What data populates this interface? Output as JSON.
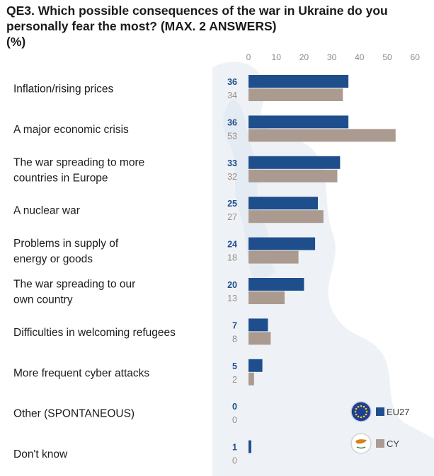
{
  "title": {
    "line1": "QE3. Which possible consequences of the war in Ukraine do you",
    "line2": "personally fear the most? (MAX. 2 ANSWERS)",
    "line3": "(%)"
  },
  "colors": {
    "eu27": "#1f4e8c",
    "cy": "#ab9a8f",
    "eu27_label": "#1f4e8c",
    "cy_label": "#9b8d83",
    "axis_text": "#8a8a8a",
    "map_bg": "#eef2f7"
  },
  "chart_data": {
    "type": "bar",
    "orientation": "horizontal",
    "xlim": [
      0,
      60
    ],
    "xticks": [
      "0",
      "10",
      "20",
      "30",
      "40",
      "50",
      "60"
    ],
    "categories": [
      [
        "Inflation/rising prices"
      ],
      [
        "A major economic crisis"
      ],
      [
        "The war spreading to more",
        "countries in Europe"
      ],
      [
        "A nuclear war"
      ],
      [
        "Problems in supply of",
        "energy or goods"
      ],
      [
        "The war spreading to our",
        "own country"
      ],
      [
        "Difficulties in welcoming refugees"
      ],
      [
        "More frequent cyber attacks"
      ],
      [
        "Other (SPONTANEOUS)"
      ],
      [
        "Don't know"
      ]
    ],
    "series": [
      {
        "name": "EU27",
        "values": [
          36,
          36,
          33,
          25,
          24,
          20,
          7,
          5,
          0,
          1
        ],
        "icon": "eu-flag-icon"
      },
      {
        "name": "CY",
        "values": [
          34,
          53,
          32,
          27,
          18,
          13,
          8,
          2,
          0,
          0
        ],
        "icon": "cyprus-flag-icon"
      }
    ],
    "legend_position": "bottom-right",
    "grid": false
  }
}
